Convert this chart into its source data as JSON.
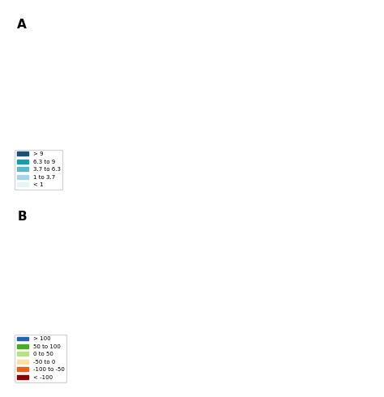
{
  "panel_a_title": "A",
  "panel_b_title": "B",
  "legend_a_labels": [
    "> 9",
    "6.3 to 9",
    "3.7 to 6.3",
    "1 to 3.7",
    "< 1"
  ],
  "legend_a_colors": [
    "#1a5276",
    "#1a9aad",
    "#5ab8cc",
    "#a8d4e8",
    "#e8f4f8"
  ],
  "legend_b_labels": [
    "> 100",
    "50 to 100",
    "0 to 50",
    "-50 to 0",
    "-100 to -50",
    "< -100"
  ],
  "legend_b_colors": [
    "#2166ac",
    "#4aac26",
    "#b8e186",
    "#fde0a8",
    "#e8601c",
    "#8b0000"
  ],
  "background_color": "#ffffff",
  "figsize": [
    4.74,
    4.9
  ],
  "dpi": 100
}
